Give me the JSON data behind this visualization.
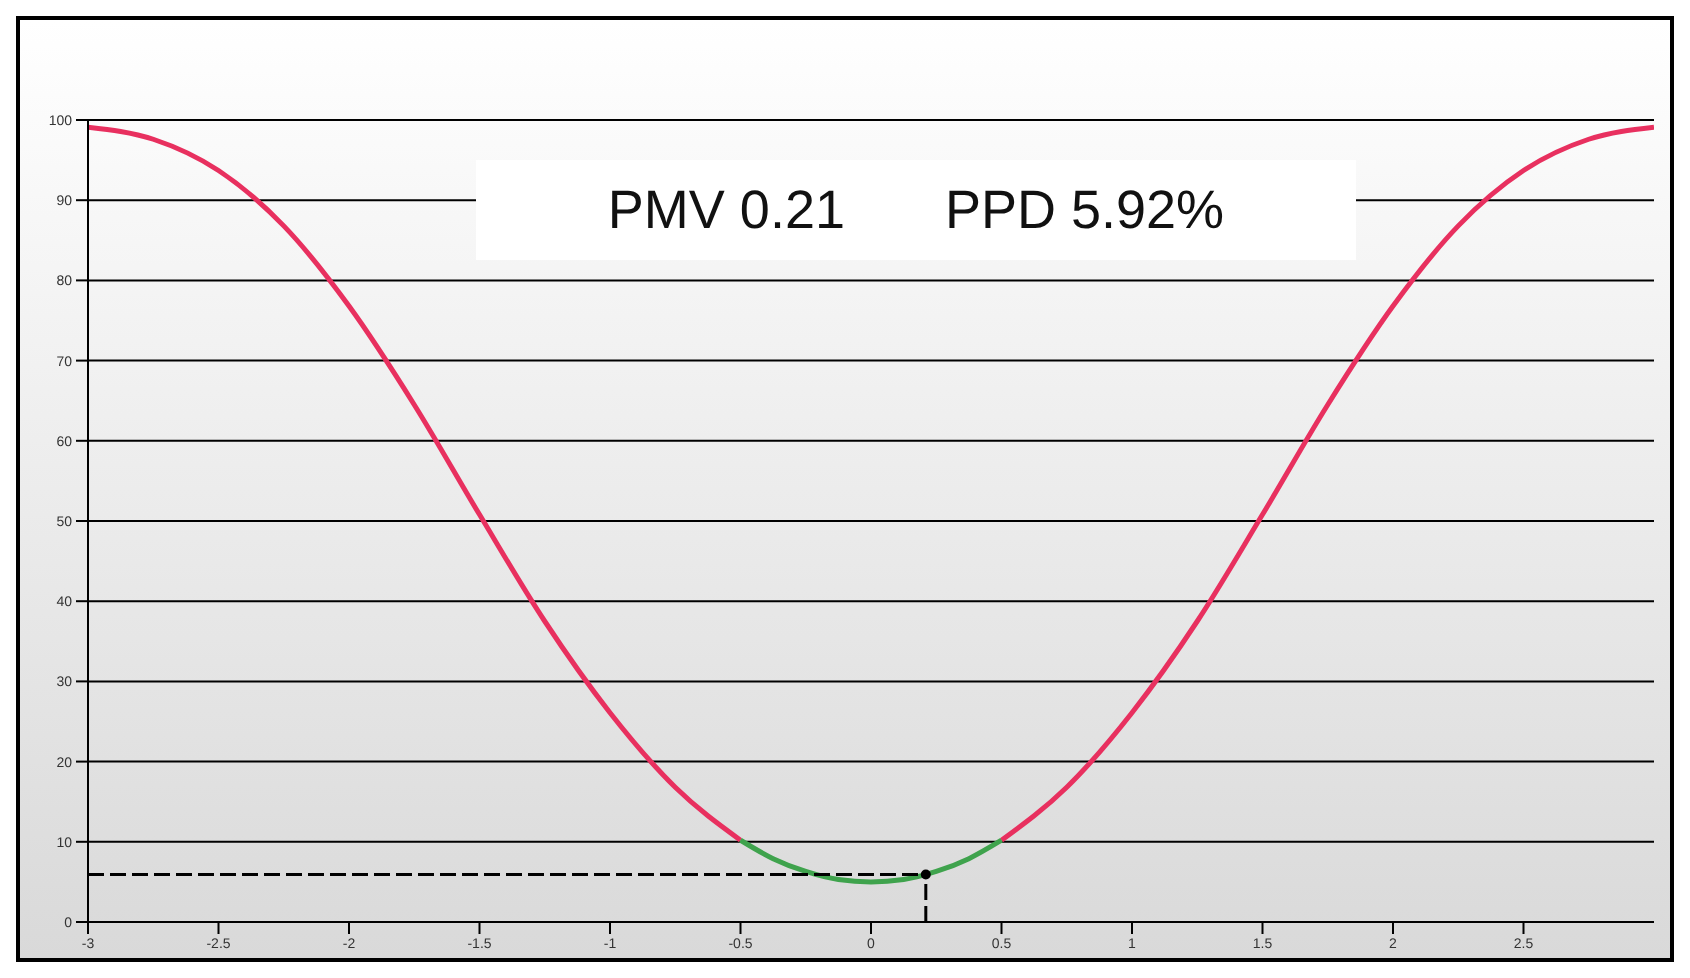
{
  "chart_data": {
    "type": "line",
    "annotations": [
      "PMV 0.21",
      "PPD 5.92%"
    ],
    "series": [
      {
        "color": "#e8305f",
        "x": [
          -3,
          -2.75,
          -2.5,
          -2.25,
          -2,
          -1.75,
          -1.5,
          -1.25,
          -1,
          -0.75,
          -0.5
        ],
        "values": [
          99.1,
          97.6,
          93.7,
          86.8,
          76.8,
          64.5,
          50.8,
          37.5,
          26.1,
          16.8,
          10.2
        ]
      },
      {
        "color": "#e8305f",
        "x": [
          0.5,
          0.75,
          1,
          1.25,
          1.5,
          1.75,
          2,
          2.25,
          2.5,
          2.75,
          3
        ],
        "values": [
          10.2,
          16.8,
          26.1,
          37.5,
          50.8,
          64.5,
          76.8,
          86.8,
          93.7,
          97.6,
          99.1
        ]
      },
      {
        "color": "#3fa34d",
        "x": [
          -0.5,
          -0.375,
          -0.25,
          -0.125,
          0,
          0.125,
          0.25,
          0.375,
          0.5
        ],
        "values": [
          10.2,
          7.9,
          6.3,
          5.3,
          5,
          5.3,
          6.3,
          7.9,
          10.2
        ]
      },
      {
        "color": "#000000",
        "line_style": "dashed",
        "x": [
          -3,
          0.21
        ],
        "values": [
          5.92,
          5.92
        ]
      },
      {
        "color": "#000000",
        "line_style": "dashed",
        "x": [
          0.21,
          0.21
        ],
        "values": [
          0,
          5.92
        ]
      },
      {
        "type": "scatter",
        "color": "#000000",
        "x": [
          0.21
        ],
        "values": [
          5.92
        ]
      }
    ],
    "xlim": [
      -3,
      3
    ],
    "xticks": [
      -3,
      -2.5,
      -2,
      -1.5,
      -1,
      -0.5,
      0,
      0.5,
      1,
      1.5,
      2,
      2.5
    ],
    "ylim": [
      0,
      100
    ],
    "yticks": [
      0,
      10,
      20,
      30,
      40,
      50,
      60,
      70,
      80,
      90,
      100
    ],
    "grid": "y"
  }
}
